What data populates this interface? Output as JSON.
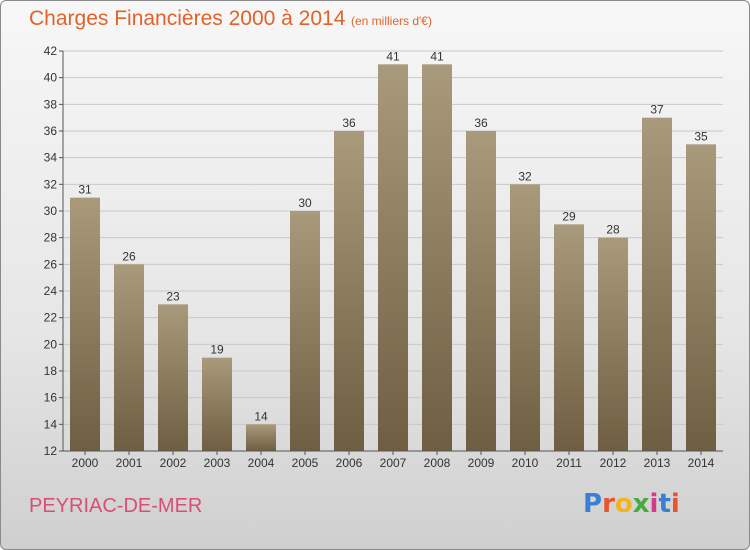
{
  "header": {
    "title": "Charges Financières 2000 à 2014",
    "subtitle": "(en milliers d'€)"
  },
  "footer": {
    "location": "PEYRIAC-DE-MER",
    "logo_text": "Proxiti",
    "logo_colors": [
      "#3a7fd0",
      "#e8542b",
      "#f2b31b",
      "#4aa93f",
      "#d33a8a",
      "#3a7fd0",
      "#e8542b"
    ]
  },
  "colors": {
    "bar_top": "#a99a7c",
    "bar_bottom": "#6f5e41",
    "grid": "#c8c8c8"
  },
  "chart_data": {
    "type": "bar",
    "title": "Charges Financières 2000 à 2014",
    "subtitle": "(en milliers d'€)",
    "xlabel": "",
    "ylabel": "",
    "categories": [
      "2000",
      "2001",
      "2002",
      "2003",
      "2004",
      "2005",
      "2006",
      "2007",
      "2008",
      "2009",
      "2010",
      "2011",
      "2012",
      "2013",
      "2014"
    ],
    "values": [
      31,
      26,
      23,
      19,
      14,
      30,
      36,
      41,
      41,
      36,
      32,
      29,
      28,
      37,
      35
    ],
    "ylim": [
      12,
      42
    ],
    "yticks": [
      12,
      14,
      16,
      18,
      20,
      22,
      24,
      26,
      28,
      30,
      32,
      34,
      36,
      38,
      40,
      42
    ],
    "grid": true,
    "legend": "none"
  }
}
